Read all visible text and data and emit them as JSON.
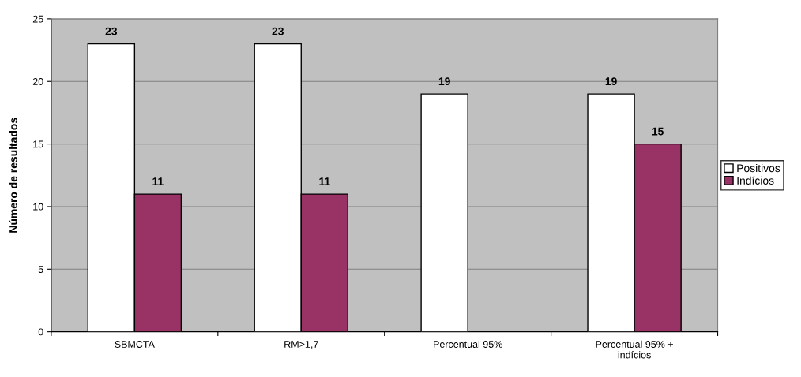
{
  "chart_data": {
    "type": "bar",
    "ylabel": "Número de resultados",
    "categories": [
      "SBMCTA",
      "RM>1,7",
      "Percentual 95%",
      "Percentual 95% +\nindícios"
    ],
    "series": [
      {
        "name": "Positivos",
        "color": "#ffffff",
        "values": [
          23,
          23,
          19,
          19
        ]
      },
      {
        "name": "Indícios",
        "color": "#993366",
        "values": [
          11,
          11,
          null,
          15
        ]
      }
    ],
    "ylim": [
      0,
      25
    ],
    "yticks": [
      0,
      5,
      10,
      15,
      20,
      25
    ],
    "grid": "y",
    "legend": "right",
    "data_labels": true
  }
}
